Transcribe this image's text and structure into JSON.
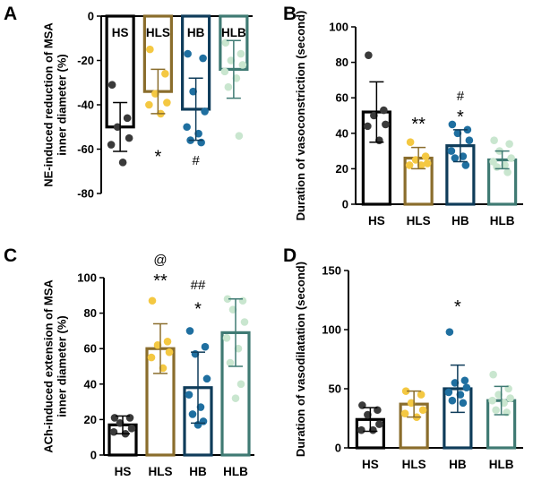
{
  "figure": {
    "categories": [
      "HS",
      "HLS",
      "HB",
      "HLB"
    ],
    "colors": {
      "HS": "#000000",
      "HLS": "#8a6d2c",
      "HB": "#0f3c5a",
      "HLB": "#3f7a73"
    },
    "dot_colors": {
      "HS": "#3a3a3a",
      "HLS": "#f4c842",
      "HB": "#1f6fa0",
      "HLB": "#c9e6cf"
    }
  },
  "chart_data": [
    {
      "panel": "A",
      "type": "bar",
      "ylabel": "NE-induced reduction of MSA inner diameter (%)",
      "ylim": [
        -80,
        0
      ],
      "yticks": [
        0,
        -20,
        -40,
        -60,
        -80
      ],
      "categories": [
        "HS",
        "HLS",
        "HB",
        "HLB"
      ],
      "means": [
        -50,
        -34,
        -42,
        -24
      ],
      "sd": [
        11,
        10,
        14,
        13
      ],
      "points": [
        [
          -31,
          -46,
          -50,
          -55,
          -58,
          -66
        ],
        [
          -15,
          -26,
          -35,
          -39,
          -40,
          -44
        ],
        [
          -17,
          -19,
          -34,
          -43,
          -50,
          -53,
          -56,
          -57
        ],
        [
          -12,
          -17,
          -20,
          -22,
          -25,
          -28,
          -32,
          -54
        ]
      ],
      "annotations": [
        {
          "category": "HLS",
          "text": "*",
          "y": -62
        },
        {
          "category": "HB",
          "text": "#",
          "y": -65
        }
      ]
    },
    {
      "panel": "B",
      "type": "bar",
      "ylabel": "Duration of vasoconstriction (second)",
      "ylim": [
        0,
        100
      ],
      "yticks": [
        0,
        20,
        40,
        60,
        80,
        100
      ],
      "categories": [
        "HS",
        "HLS",
        "HB",
        "HLB"
      ],
      "means": [
        52,
        26,
        33,
        25
      ],
      "sd": [
        17,
        6,
        9,
        5
      ],
      "points": [
        [
          84,
          53,
          50,
          45,
          44,
          36
        ],
        [
          35,
          27,
          25,
          23,
          22,
          22
        ],
        [
          45,
          42,
          40,
          36,
          30,
          27,
          26,
          22
        ],
        [
          36,
          34,
          30,
          26,
          24,
          22,
          21,
          18
        ]
      ],
      "annotations": [
        {
          "category": "HLS",
          "text": "**",
          "y": 47
        },
        {
          "category": "HB",
          "text": "#",
          "y": 61
        },
        {
          "category": "HB",
          "text": "*",
          "y": 51
        }
      ]
    },
    {
      "panel": "C",
      "type": "bar",
      "ylabel": "ACh-induced extension of MSA inner diameter (%)",
      "ylim": [
        0,
        100
      ],
      "yticks": [
        0,
        20,
        40,
        60,
        80,
        100
      ],
      "categories": [
        "HS",
        "HLS",
        "HB",
        "HLB"
      ],
      "means": [
        17,
        60,
        38,
        69
      ],
      "sd": [
        5,
        14,
        20,
        19
      ],
      "points": [
        [
          21,
          21,
          18,
          15,
          13,
          12
        ],
        [
          87,
          64,
          62,
          58,
          55,
          49
        ],
        [
          70,
          61,
          57,
          43,
          34,
          27,
          23,
          19,
          17
        ],
        [
          88,
          87,
          82,
          75,
          66,
          60,
          52,
          40,
          32
        ]
      ],
      "annotations": [
        {
          "category": "HLS",
          "text": "@",
          "y": 110
        },
        {
          "category": "HLS",
          "text": "**",
          "y": 100
        },
        {
          "category": "HB",
          "text": "##",
          "y": 96
        },
        {
          "category": "HB",
          "text": "*",
          "y": 84
        }
      ]
    },
    {
      "panel": "D",
      "type": "bar",
      "ylabel": "Duration of vasodilatation (second)",
      "ylim": [
        0,
        150
      ],
      "yticks": [
        0,
        50,
        100,
        150
      ],
      "categories": [
        "HS",
        "HLS",
        "HB",
        "HLB"
      ],
      "means": [
        24,
        37,
        50,
        40
      ],
      "sd": [
        10,
        11,
        20,
        12
      ],
      "points": [
        [
          36,
          32,
          28,
          20,
          15,
          15
        ],
        [
          48,
          45,
          38,
          32,
          29,
          26
        ],
        [
          98,
          57,
          55,
          51,
          47,
          45,
          40,
          38
        ],
        [
          62,
          50,
          45,
          42,
          40,
          38,
          32,
          30
        ]
      ],
      "annotations": [
        {
          "category": "HB",
          "text": "*",
          "y": 122
        }
      ]
    }
  ]
}
